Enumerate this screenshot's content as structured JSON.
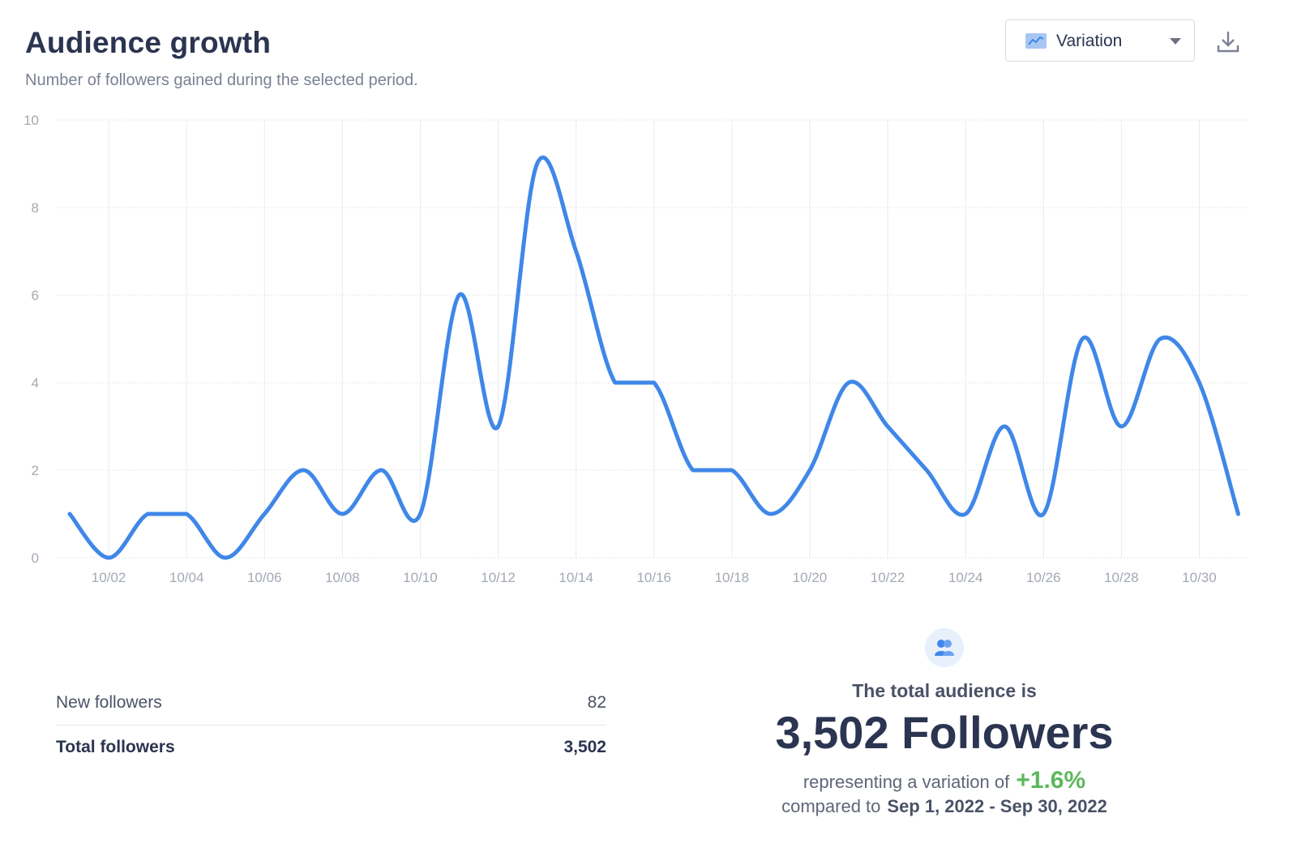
{
  "header": {
    "title": "Audience growth",
    "subtitle": "Number of followers gained during the selected period."
  },
  "view_select": {
    "label": "Variation",
    "icon": "line-chart-icon"
  },
  "download": {
    "icon": "download-icon"
  },
  "chart_data": {
    "type": "line",
    "title": "Audience growth",
    "xlabel": "",
    "ylabel": "",
    "ylim": [
      0,
      10
    ],
    "yticks": [
      "0",
      "2",
      "4",
      "6",
      "8",
      "10"
    ],
    "xtick_labels": [
      "10/02",
      "10/04",
      "10/06",
      "10/08",
      "10/10",
      "10/12",
      "10/14",
      "10/16",
      "10/18",
      "10/20",
      "10/22",
      "10/24",
      "10/26",
      "10/28",
      "10/30"
    ],
    "x": [
      "10/01",
      "10/02",
      "10/03",
      "10/04",
      "10/05",
      "10/06",
      "10/07",
      "10/08",
      "10/09",
      "10/10",
      "10/11",
      "10/12",
      "10/13",
      "10/14",
      "10/15",
      "10/16",
      "10/17",
      "10/18",
      "10/19",
      "10/20",
      "10/21",
      "10/22",
      "10/23",
      "10/24",
      "10/25",
      "10/26",
      "10/27",
      "10/28",
      "10/29",
      "10/30",
      "10/31"
    ],
    "series": [
      {
        "name": "New followers",
        "color": "#3f87e8",
        "values": [
          1,
          0,
          1,
          1,
          0,
          1,
          2,
          1,
          2,
          1,
          6,
          3,
          9,
          7,
          4,
          4,
          2,
          2,
          1,
          2,
          4,
          3,
          2,
          1,
          3,
          1,
          5,
          3,
          5,
          4,
          1
        ]
      }
    ],
    "grid": true
  },
  "stats": {
    "new_label": "New followers",
    "new_value": "82",
    "total_label": "Total followers",
    "total_value": "3,502"
  },
  "audience": {
    "icon": "users-icon",
    "lead": "The total audience is",
    "big": "3,502 Followers",
    "variation_text": "representing a variation of",
    "variation_pct": "+1.6%",
    "compared_text": "compared to",
    "range": "Sep 1, 2022 - Sep 30, 2022",
    "positive_color": "#5cb85c"
  }
}
